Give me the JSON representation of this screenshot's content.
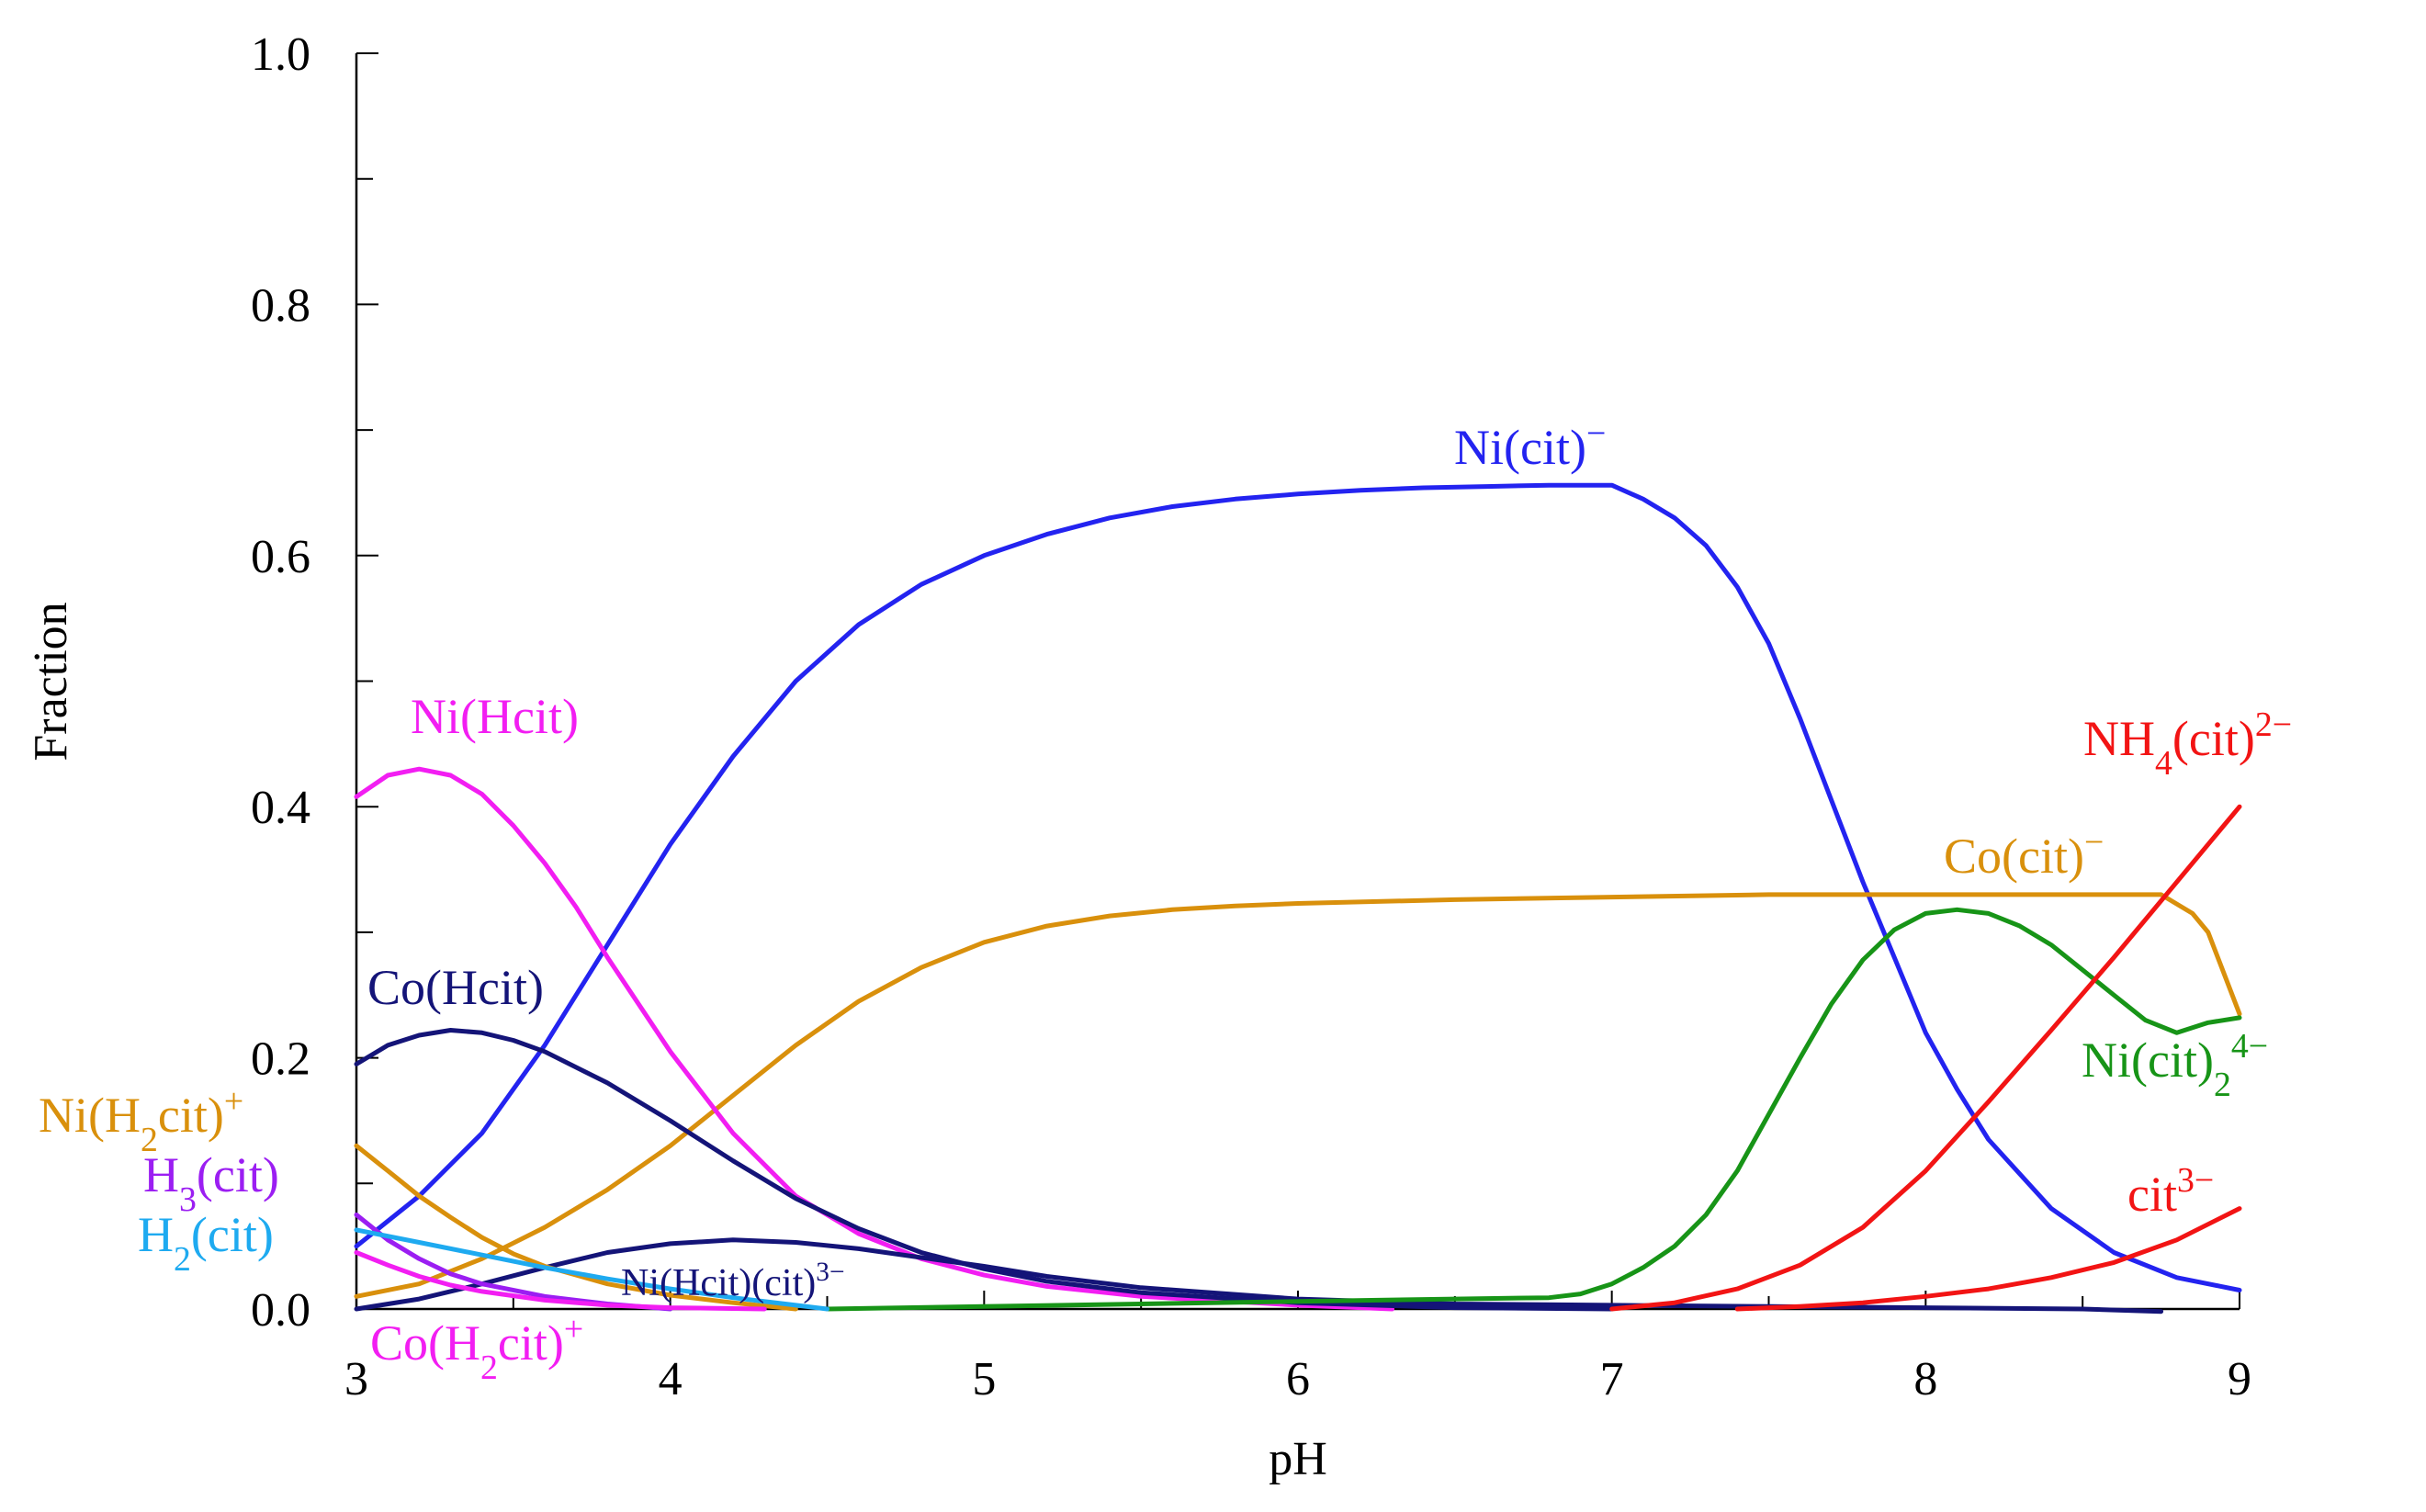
{
  "chart_data": {
    "type": "line",
    "title": "",
    "xlabel": "pH",
    "ylabel": "Fraction",
    "xlim": [
      3,
      9
    ],
    "ylim": [
      0,
      1.0
    ],
    "x_ticks": [
      "3",
      "4",
      "5",
      "6",
      "7",
      "8",
      "9"
    ],
    "y_ticks": [
      "0.0",
      "0.2",
      "0.4",
      "0.6",
      "0.8",
      "1.0"
    ],
    "grid": false,
    "legend": "none",
    "series": [
      {
        "name": "Ni(cit)−",
        "label_parts": [
          [
            "Ni(cit)",
            ""
          ],
          [
            "−",
            "sup"
          ]
        ],
        "color": "#2323f0",
        "x": [
          3.0,
          3.2,
          3.4,
          3.6,
          3.8,
          4.0,
          4.2,
          4.4,
          4.6,
          4.8,
          5.0,
          5.2,
          5.4,
          5.6,
          5.8,
          6.0,
          6.2,
          6.4,
          6.6,
          6.8,
          7.0,
          7.1,
          7.2,
          7.3,
          7.4,
          7.5,
          7.6,
          7.7,
          7.8,
          7.9,
          8.0,
          8.1,
          8.2,
          8.4,
          8.6,
          8.8,
          9.0
        ],
        "y": [
          0.05,
          0.09,
          0.14,
          0.21,
          0.29,
          0.37,
          0.44,
          0.5,
          0.545,
          0.577,
          0.6,
          0.617,
          0.63,
          0.639,
          0.645,
          0.649,
          0.652,
          0.654,
          0.655,
          0.656,
          0.656,
          0.645,
          0.63,
          0.608,
          0.575,
          0.53,
          0.47,
          0.405,
          0.34,
          0.28,
          0.22,
          0.175,
          0.135,
          0.08,
          0.045,
          0.025,
          0.015
        ]
      },
      {
        "name": "Co(cit)−",
        "label_parts": [
          [
            "Co(cit)",
            ""
          ],
          [
            "−",
            "sup"
          ]
        ],
        "color": "#d9900c",
        "x": [
          3.0,
          3.2,
          3.4,
          3.6,
          3.8,
          4.0,
          4.2,
          4.4,
          4.6,
          4.8,
          5.0,
          5.2,
          5.4,
          5.6,
          5.8,
          6.0,
          6.5,
          7.0,
          7.5,
          8.0,
          8.5,
          8.75,
          8.85,
          8.9,
          9.0
        ],
        "y": [
          0.01,
          0.02,
          0.04,
          0.065,
          0.095,
          0.13,
          0.17,
          0.21,
          0.245,
          0.272,
          0.292,
          0.305,
          0.313,
          0.318,
          0.321,
          0.323,
          0.326,
          0.328,
          0.33,
          0.33,
          0.33,
          0.33,
          0.315,
          0.3,
          0.235
        ]
      },
      {
        "name": "Ni(Hcit)",
        "label_parts": [
          [
            "Ni(Hcit)",
            ""
          ]
        ],
        "color": "#f21ef2",
        "x": [
          3.0,
          3.1,
          3.2,
          3.3,
          3.4,
          3.5,
          3.6,
          3.7,
          3.8,
          4.0,
          4.2,
          4.4,
          4.6,
          4.8,
          5.0,
          5.2,
          5.5,
          6.0,
          6.3
        ],
        "y": [
          0.408,
          0.425,
          0.43,
          0.425,
          0.41,
          0.385,
          0.355,
          0.32,
          0.28,
          0.205,
          0.14,
          0.09,
          0.06,
          0.04,
          0.027,
          0.018,
          0.01,
          0.003,
          0.0
        ]
      },
      {
        "name": "Co(Hcit)",
        "label_parts": [
          [
            "Co(Hcit)",
            ""
          ]
        ],
        "color": "#141478",
        "x": [
          3.0,
          3.1,
          3.2,
          3.3,
          3.4,
          3.5,
          3.6,
          3.8,
          4.0,
          4.2,
          4.4,
          4.6,
          4.8,
          5.0,
          5.2,
          5.5,
          6.0,
          6.5,
          7.0
        ],
        "y": [
          0.195,
          0.21,
          0.218,
          0.222,
          0.22,
          0.214,
          0.205,
          0.18,
          0.15,
          0.118,
          0.088,
          0.064,
          0.045,
          0.032,
          0.022,
          0.013,
          0.005,
          0.001,
          0.0
        ]
      },
      {
        "name": "Ni(Hcit)(cit)3−",
        "label_parts": [
          [
            "Ni(Hcit)(cit)",
            ""
          ],
          [
            "3−",
            "sup"
          ]
        ],
        "color": "#141478",
        "x": [
          3.0,
          3.2,
          3.4,
          3.6,
          3.8,
          4.0,
          4.2,
          4.4,
          4.6,
          4.8,
          5.0,
          5.2,
          5.5,
          6.0,
          6.5,
          7.0,
          7.5,
          8.0,
          8.5,
          8.75
        ],
        "y": [
          0.0,
          0.008,
          0.02,
          0.033,
          0.045,
          0.052,
          0.055,
          0.053,
          0.048,
          0.041,
          0.034,
          0.026,
          0.017,
          0.008,
          0.004,
          0.003,
          0.002,
          0.001,
          0.0,
          -0.002
        ]
      },
      {
        "name": "Ni(cit)24−",
        "label_parts": [
          [
            "Ni(cit)",
            ""
          ],
          [
            "2",
            "sub"
          ],
          [
            "4−",
            "sup"
          ]
        ],
        "color": "#179417",
        "x": [
          4.5,
          5.0,
          5.5,
          6.0,
          6.5,
          6.8,
          6.9,
          7.0,
          7.1,
          7.2,
          7.3,
          7.4,
          7.5,
          7.6,
          7.7,
          7.8,
          7.9,
          8.0,
          8.1,
          8.2,
          8.3,
          8.4,
          8.5,
          8.6,
          8.7,
          8.8,
          8.9,
          9.0
        ],
        "y": [
          0.0,
          0.002,
          0.004,
          0.006,
          0.008,
          0.009,
          0.012,
          0.02,
          0.033,
          0.05,
          0.075,
          0.11,
          0.155,
          0.2,
          0.243,
          0.278,
          0.302,
          0.315,
          0.318,
          0.315,
          0.305,
          0.29,
          0.27,
          0.25,
          0.23,
          0.22,
          0.228,
          0.232
        ]
      },
      {
        "name": "NH4(cit)2−",
        "label_parts": [
          [
            "NH",
            ""
          ],
          [
            "4",
            "sub"
          ],
          [
            "(cit)",
            ""
          ],
          [
            "2−",
            "sup"
          ]
        ],
        "color": "#f21414",
        "x": [
          7.0,
          7.2,
          7.4,
          7.6,
          7.8,
          8.0,
          8.2,
          8.4,
          8.6,
          8.8,
          9.0
        ],
        "y": [
          0.0,
          0.005,
          0.016,
          0.035,
          0.065,
          0.11,
          0.165,
          0.222,
          0.28,
          0.34,
          0.4
        ]
      },
      {
        "name": "cit3−",
        "label_parts": [
          [
            "cit",
            ""
          ],
          [
            "3−",
            "sup"
          ]
        ],
        "color": "#f21414",
        "x": [
          7.4,
          7.6,
          7.8,
          8.0,
          8.2,
          8.4,
          8.6,
          8.8,
          9.0
        ],
        "y": [
          0.0,
          0.002,
          0.005,
          0.01,
          0.016,
          0.025,
          0.037,
          0.055,
          0.08
        ]
      },
      {
        "name": "Ni(H2cit)+",
        "label_parts": [
          [
            "Ni(H",
            ""
          ],
          [
            "2",
            "sub"
          ],
          [
            "cit)",
            ""
          ],
          [
            "+",
            "sup"
          ]
        ],
        "color": "#d9900c",
        "x": [
          3.0,
          3.1,
          3.2,
          3.3,
          3.4,
          3.5,
          3.6,
          3.8,
          4.0,
          4.2,
          4.4
        ],
        "y": [
          0.13,
          0.11,
          0.09,
          0.073,
          0.057,
          0.044,
          0.034,
          0.02,
          0.011,
          0.005,
          0.0
        ]
      },
      {
        "name": "H3(cit)",
        "label_parts": [
          [
            "H",
            ""
          ],
          [
            "3",
            "sub"
          ],
          [
            "(cit)",
            ""
          ]
        ],
        "color": "#9b1ef2",
        "x": [
          3.0,
          3.1,
          3.2,
          3.3,
          3.4,
          3.6,
          3.8,
          4.0
        ],
        "y": [
          0.075,
          0.055,
          0.04,
          0.028,
          0.02,
          0.01,
          0.004,
          0.0
        ]
      },
      {
        "name": "H2(cit)",
        "label_parts": [
          [
            "H",
            ""
          ],
          [
            "2",
            "sub"
          ],
          [
            "(cit)",
            ""
          ]
        ],
        "color": "#1eaaf0",
        "x": [
          3.0,
          3.2,
          3.4,
          3.6,
          3.8,
          4.0,
          4.2,
          4.4,
          4.5
        ],
        "y": [
          0.063,
          0.053,
          0.043,
          0.033,
          0.024,
          0.016,
          0.009,
          0.003,
          0.0
        ]
      },
      {
        "name": "Co(H2cit)+",
        "label_parts": [
          [
            "Co(H",
            ""
          ],
          [
            "2",
            "sub"
          ],
          [
            "cit)",
            ""
          ],
          [
            "+",
            "sup"
          ]
        ],
        "color": "#f21ef2",
        "x": [
          3.0,
          3.1,
          3.2,
          3.3,
          3.4,
          3.6,
          3.8,
          4.0,
          4.3
        ],
        "y": [
          0.045,
          0.035,
          0.026,
          0.019,
          0.014,
          0.007,
          0.003,
          0.001,
          0.0
        ]
      }
    ]
  }
}
